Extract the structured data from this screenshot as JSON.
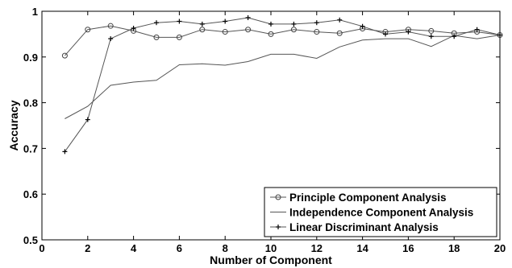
{
  "chart_data": {
    "type": "line",
    "title": "",
    "xlabel": "Number of Component",
    "ylabel": "Accuracy",
    "xlim": [
      0,
      20
    ],
    "ylim": [
      0.5,
      1.0
    ],
    "xticks": [
      0,
      2,
      4,
      6,
      8,
      10,
      12,
      14,
      16,
      18,
      20
    ],
    "yticks": [
      0.5,
      0.6,
      0.7,
      0.8,
      0.9,
      1.0
    ],
    "ytick_labels": [
      "0.5",
      "0.6",
      "0.7",
      "0.8",
      "0.9",
      "1"
    ],
    "grid": false,
    "legend_position": "bottom-right",
    "x": [
      1,
      2,
      3,
      4,
      5,
      6,
      7,
      8,
      9,
      10,
      11,
      12,
      13,
      14,
      15,
      16,
      17,
      18,
      19,
      20
    ],
    "series": [
      {
        "name": "Principle Component Analysis",
        "marker": "circle",
        "values": [
          0.903,
          0.96,
          0.968,
          0.957,
          0.943,
          0.943,
          0.96,
          0.955,
          0.96,
          0.95,
          0.96,
          0.955,
          0.952,
          0.962,
          0.955,
          0.96,
          0.957,
          0.952,
          0.955,
          0.948
        ]
      },
      {
        "name": "Independence Component Analysis",
        "marker": "none",
        "values": [
          0.765,
          0.792,
          0.838,
          0.845,
          0.849,
          0.883,
          0.885,
          0.882,
          0.89,
          0.906,
          0.906,
          0.897,
          0.922,
          0.937,
          0.94,
          0.94,
          0.923,
          0.947,
          0.94,
          0.948
        ]
      },
      {
        "name": "Linear Discriminant Analysis",
        "marker": "plus",
        "values": [
          0.693,
          0.763,
          0.94,
          0.963,
          0.975,
          0.978,
          0.972,
          0.978,
          0.986,
          0.972,
          0.972,
          0.975,
          0.981,
          0.967,
          0.95,
          0.955,
          0.945,
          0.945,
          0.96,
          0.948
        ]
      }
    ]
  }
}
